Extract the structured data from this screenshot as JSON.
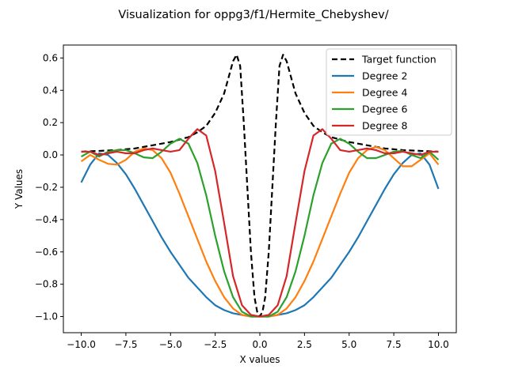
{
  "chart_data": {
    "type": "line",
    "title": "Visualization for oppg3/f1/Hermite_Chebyshev/",
    "xlabel": "X values",
    "ylabel": "Y Values",
    "xlim": [
      -11.0,
      11.0
    ],
    "ylim": [
      -1.1,
      0.68
    ],
    "xticks": [
      -10.0,
      -7.5,
      -5.0,
      -2.5,
      0.0,
      2.5,
      5.0,
      7.5,
      10.0
    ],
    "xtick_labels": [
      "−10.0",
      "−7.5",
      "−5.0",
      "−2.5",
      "0.0",
      "2.5",
      "5.0",
      "7.5",
      "10.0"
    ],
    "yticks": [
      -1.0,
      -0.8,
      -0.6,
      -0.4,
      -0.2,
      0.0,
      0.2,
      0.4,
      0.6
    ],
    "ytick_labels": [
      "−1.0",
      "−0.8",
      "−0.6",
      "−0.4",
      "−0.2",
      "0.0",
      "0.2",
      "0.4",
      "0.6"
    ],
    "grid": false,
    "legend_position": "upper right",
    "series": [
      {
        "name": "Target function",
        "color": "#000000",
        "style": "dashed",
        "x": [
          -10,
          -9,
          -8,
          -7,
          -6,
          -5,
          -4,
          -3.5,
          -3,
          -2.5,
          -2,
          -1.7,
          -1.5,
          -1.3,
          -1.1,
          -0.9,
          -0.7,
          -0.5,
          -0.3,
          -0.15,
          0,
          0.15,
          0.3,
          0.5,
          0.7,
          0.9,
          1.1,
          1.3,
          1.5,
          1.7,
          2,
          2.5,
          3,
          3.5,
          4,
          5,
          6,
          7,
          8,
          9,
          10
        ],
        "y": [
          0.02,
          0.025,
          0.03,
          0.04,
          0.06,
          0.08,
          0.11,
          0.14,
          0.18,
          0.26,
          0.38,
          0.5,
          0.58,
          0.62,
          0.55,
          0.2,
          -0.2,
          -0.6,
          -0.88,
          -0.97,
          -1.0,
          -0.97,
          -0.88,
          -0.6,
          -0.2,
          0.2,
          0.55,
          0.62,
          0.58,
          0.5,
          0.38,
          0.26,
          0.18,
          0.14,
          0.11,
          0.08,
          0.06,
          0.04,
          0.03,
          0.025,
          0.02
        ]
      },
      {
        "name": "Degree 2",
        "color": "#1f77b4",
        "style": "solid",
        "x": [
          -10,
          -9.5,
          -9,
          -8.5,
          -8,
          -7.5,
          -7,
          -6.5,
          -6,
          -5.5,
          -5,
          -4.5,
          -4,
          -3.5,
          -3,
          -2.5,
          -2,
          -1.5,
          -1,
          -0.5,
          0,
          0.5,
          1,
          1.5,
          2,
          2.5,
          3,
          3.5,
          4,
          4.5,
          5,
          5.5,
          6,
          6.5,
          7,
          7.5,
          8,
          8.5,
          9,
          9.5,
          10
        ],
        "y": [
          -0.17,
          -0.06,
          0.01,
          0.0,
          -0.05,
          -0.12,
          -0.21,
          -0.31,
          -0.41,
          -0.51,
          -0.6,
          -0.68,
          -0.76,
          -0.82,
          -0.88,
          -0.93,
          -0.96,
          -0.98,
          -0.99,
          -1.0,
          -1.0,
          -1.0,
          -0.99,
          -0.98,
          -0.96,
          -0.93,
          -0.88,
          -0.82,
          -0.76,
          -0.68,
          -0.6,
          -0.51,
          -0.41,
          -0.31,
          -0.21,
          -0.12,
          -0.05,
          0.0,
          0.01,
          -0.06,
          -0.21
        ]
      },
      {
        "name": "Degree 4",
        "color": "#ff7f0e",
        "style": "solid",
        "x": [
          -10,
          -9.5,
          -9,
          -8.5,
          -8,
          -7.5,
          -7,
          -6.5,
          -6,
          -5.5,
          -5,
          -4.5,
          -4,
          -3.5,
          -3,
          -2.5,
          -2,
          -1.5,
          -1,
          -0.5,
          0,
          0.5,
          1,
          1.5,
          2,
          2.5,
          3,
          3.5,
          4,
          4.5,
          5,
          5.5,
          6,
          6.5,
          7,
          7.5,
          8,
          8.5,
          9,
          9.5,
          10
        ],
        "y": [
          -0.04,
          0.0,
          -0.03,
          -0.055,
          -0.06,
          -0.03,
          0.02,
          0.04,
          0.03,
          -0.02,
          -0.11,
          -0.24,
          -0.38,
          -0.52,
          -0.66,
          -0.78,
          -0.88,
          -0.95,
          -0.99,
          -1.0,
          -1.0,
          -1.0,
          -0.99,
          -0.95,
          -0.88,
          -0.78,
          -0.66,
          -0.52,
          -0.38,
          -0.24,
          -0.11,
          -0.02,
          0.03,
          0.05,
          0.03,
          -0.02,
          -0.07,
          -0.07,
          -0.03,
          0.01,
          -0.06
        ]
      },
      {
        "name": "Degree 6",
        "color": "#2ca02c",
        "style": "solid",
        "x": [
          -10,
          -9.5,
          -9,
          -8.5,
          -8,
          -7.5,
          -7,
          -6.5,
          -6,
          -5.5,
          -5,
          -4.5,
          -4,
          -3.5,
          -3,
          -2.5,
          -2,
          -1.5,
          -1,
          -0.5,
          0,
          0.5,
          1,
          1.5,
          2,
          2.5,
          3,
          3.5,
          4,
          4.5,
          5,
          5.5,
          6,
          6.5,
          7,
          7.5,
          8,
          8.5,
          9,
          9.5,
          10
        ],
        "y": [
          -0.01,
          0.02,
          -0.01,
          0.02,
          0.03,
          0.03,
          0.01,
          -0.015,
          -0.02,
          0.02,
          0.07,
          0.1,
          0.07,
          -0.05,
          -0.25,
          -0.5,
          -0.72,
          -0.88,
          -0.97,
          -1.0,
          -1.0,
          -1.0,
          -0.97,
          -0.88,
          -0.72,
          -0.5,
          -0.25,
          -0.05,
          0.07,
          0.1,
          0.07,
          0.02,
          -0.02,
          -0.02,
          0.0,
          0.02,
          0.025,
          0.0,
          -0.02,
          0.02,
          -0.03
        ]
      },
      {
        "name": "Degree 8",
        "color": "#d62728",
        "style": "solid",
        "x": [
          -10,
          -9.5,
          -9,
          -8.5,
          -8,
          -7.5,
          -7,
          -6.5,
          -6,
          -5.5,
          -5,
          -4.5,
          -4,
          -3.5,
          -3,
          -2.5,
          -2,
          -1.5,
          -1,
          -0.5,
          0,
          0.5,
          1,
          1.5,
          2,
          2.5,
          3,
          3.5,
          4,
          4.5,
          5,
          5.5,
          6,
          6.5,
          7,
          7.5,
          8,
          8.5,
          9,
          9.5,
          10
        ],
        "y": [
          0.02,
          0.02,
          0.0,
          0.01,
          0.02,
          0.01,
          0.01,
          0.03,
          0.04,
          0.03,
          0.02,
          0.03,
          0.1,
          0.16,
          0.12,
          -0.1,
          -0.42,
          -0.75,
          -0.93,
          -0.99,
          -1.0,
          -0.99,
          -0.93,
          -0.75,
          -0.42,
          -0.1,
          0.12,
          0.16,
          0.1,
          0.03,
          0.02,
          0.03,
          0.04,
          0.03,
          0.01,
          0.01,
          0.02,
          0.01,
          0.0,
          0.02,
          0.02
        ]
      }
    ]
  }
}
